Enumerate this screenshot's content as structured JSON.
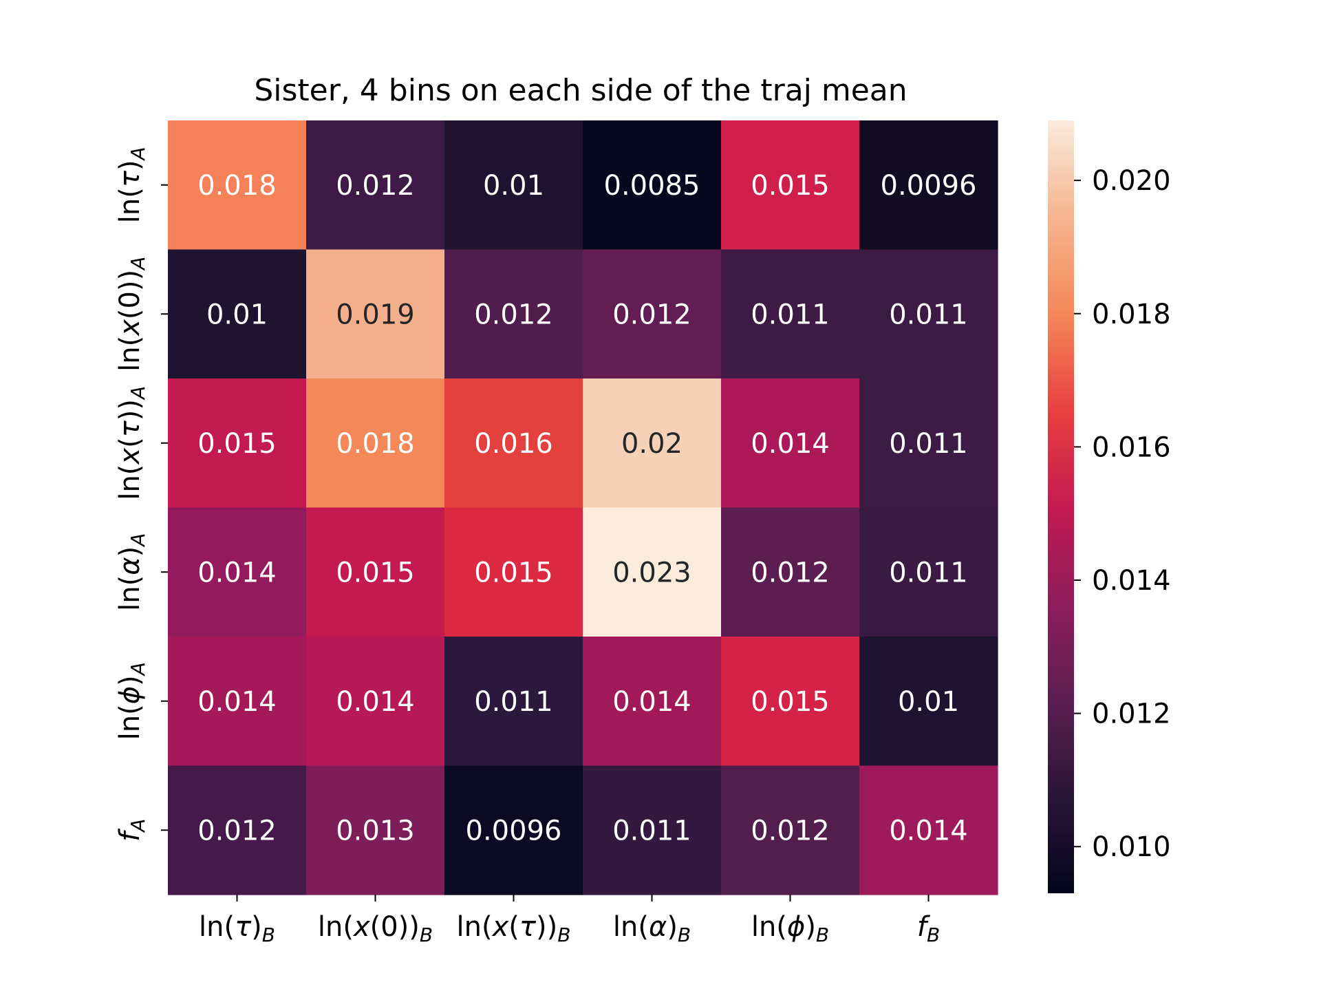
{
  "chart_data": {
    "type": "heatmap",
    "title": "Sister, 4 bins on each side of the traj mean",
    "xlabel": "",
    "ylabel": "",
    "x_labels": [
      {
        "base": "ln(",
        "it": "τ",
        "close": ")",
        "sub": "B"
      },
      {
        "base": "ln(",
        "it": "x",
        "close": "(0))",
        "sub": "B"
      },
      {
        "base": "ln(",
        "it": "x",
        "close": "(",
        "it2": "τ",
        "close2": "))",
        "sub": "B"
      },
      {
        "base": "ln(",
        "it": "α",
        "close": ")",
        "sub": "B"
      },
      {
        "base": "ln(",
        "it": "ϕ",
        "close": ")",
        "sub": "B"
      },
      {
        "base": "",
        "it": "f",
        "close": "",
        "sub": "B"
      }
    ],
    "y_labels": [
      {
        "base": "ln(",
        "it": "τ",
        "close": ")",
        "sub": "A"
      },
      {
        "base": "ln(",
        "it": "x",
        "close": "(0))",
        "sub": "A"
      },
      {
        "base": "ln(",
        "it": "x",
        "close": "(",
        "it2": "τ",
        "close2": "))",
        "sub": "A"
      },
      {
        "base": "ln(",
        "it": "α",
        "close": ")",
        "sub": "A"
      },
      {
        "base": "ln(",
        "it": "ϕ",
        "close": ")",
        "sub": "A"
      },
      {
        "base": "",
        "it": "f",
        "close": "",
        "sub": "A"
      }
    ],
    "values": [
      [
        0.018,
        0.012,
        0.01,
        0.0085,
        0.015,
        0.0096
      ],
      [
        0.01,
        0.019,
        0.012,
        0.012,
        0.011,
        0.011
      ],
      [
        0.015,
        0.018,
        0.016,
        0.02,
        0.014,
        0.011
      ],
      [
        0.014,
        0.015,
        0.015,
        0.023,
        0.012,
        0.011
      ],
      [
        0.014,
        0.014,
        0.011,
        0.014,
        0.015,
        0.01
      ],
      [
        0.012,
        0.013,
        0.0096,
        0.011,
        0.012,
        0.014
      ]
    ],
    "cell_labels": [
      [
        "0.018",
        "0.012",
        "0.01",
        "0.0085",
        "0.015",
        "0.0096"
      ],
      [
        "0.01",
        "0.019",
        "0.012",
        "0.012",
        "0.011",
        "0.011"
      ],
      [
        "0.015",
        "0.018",
        "0.016",
        "0.02",
        "0.014",
        "0.011"
      ],
      [
        "0.014",
        "0.015",
        "0.015",
        "0.023",
        "0.012",
        "0.011"
      ],
      [
        "0.014",
        "0.014",
        "0.011",
        "0.014",
        "0.015",
        "0.01"
      ],
      [
        "0.012",
        "0.013",
        "0.0096",
        "0.011",
        "0.012",
        "0.014"
      ]
    ],
    "cell_colors": [
      [
        "#f48157",
        "#3e1b46",
        "#1f142f",
        "#07071d",
        "#d11f4c",
        "#110c22"
      ],
      [
        "#1e1430",
        "#f4b08d",
        "#511d4c",
        "#621e52",
        "#3d1b45",
        "#3b1a44"
      ],
      [
        "#c21a51",
        "#f48859",
        "#e3403e",
        "#f5d1b7",
        "#ad1858",
        "#3c1b44"
      ],
      [
        "#931a5b",
        "#c51a51",
        "#dc2a43",
        "#faebdd",
        "#5c1e50",
        "#391a43"
      ],
      [
        "#a5185a",
        "#b71856",
        "#2d183d",
        "#a2195a",
        "#d52248",
        "#1f1430"
      ],
      [
        "#45194a",
        "#7e1e59",
        "#0c0a22",
        "#33193f",
        "#521e4d",
        "#9e1a5b"
      ]
    ],
    "cell_text_dark": [
      [
        false,
        false,
        false,
        false,
        false,
        false
      ],
      [
        false,
        true,
        false,
        false,
        false,
        false
      ],
      [
        false,
        false,
        false,
        true,
        false,
        false
      ],
      [
        false,
        false,
        false,
        true,
        false,
        false
      ],
      [
        false,
        false,
        false,
        false,
        false,
        false
      ],
      [
        false,
        false,
        false,
        false,
        false,
        false
      ]
    ],
    "colorbar": {
      "min": 0.0093,
      "max": 0.0209,
      "ticks": [
        0.01,
        0.012,
        0.014,
        0.016,
        0.018,
        0.02
      ],
      "tick_labels": [
        "0.010",
        "0.012",
        "0.014",
        "0.016",
        "0.018",
        "0.020"
      ],
      "stops": [
        "#03051a",
        "#2a1636",
        "#5c1e51",
        "#8e1d5b",
        "#c51a51",
        "#e8403f",
        "#f58859",
        "#f6b48e",
        "#faebdd"
      ]
    },
    "colors": {
      "text_light": "#ffffff",
      "text_dark": "#262626"
    }
  }
}
